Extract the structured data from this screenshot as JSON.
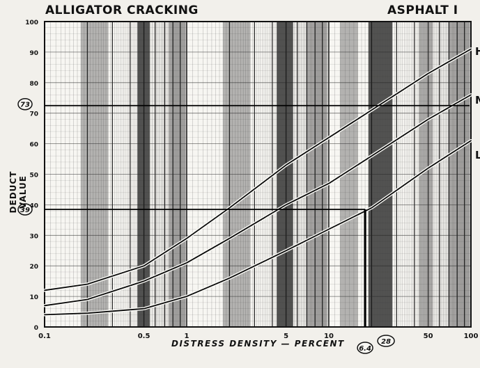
{
  "chart_data": {
    "type": "line",
    "title": "ALLIGATOR CRACKING",
    "subtitle": "ASPHALT I",
    "xlabel": "DISTRESS DENSITY — PERCENT",
    "ylabel": "DEDUCT VALUE",
    "x_scale": "log",
    "xlim": [
      0.1,
      100
    ],
    "ylim": [
      0,
      100
    ],
    "grid": true,
    "x_ticks": [
      0.1,
      0.5,
      1,
      5,
      10,
      50,
      100
    ],
    "x_tick_labels": [
      "0.1",
      "0.5",
      "1",
      "5",
      "10",
      "50",
      "100"
    ],
    "y_ticks": [
      0,
      10,
      20,
      30,
      40,
      50,
      60,
      70,
      80,
      90,
      100
    ],
    "y_tick_labels": [
      "0",
      "10",
      "20",
      "30",
      "40",
      "50",
      "60",
      "70",
      "80",
      "90",
      "100"
    ],
    "series": [
      {
        "name": "H",
        "x": [
          0.1,
          0.2,
          0.5,
          1,
          2,
          5,
          10,
          20,
          50,
          100
        ],
        "values": [
          12,
          14,
          20,
          29,
          39,
          53,
          62,
          71,
          83,
          91
        ]
      },
      {
        "name": "M",
        "x": [
          0.1,
          0.2,
          0.5,
          1,
          2,
          5,
          10,
          20,
          50,
          100
        ],
        "values": [
          7,
          9,
          15,
          21,
          29,
          40,
          47,
          56,
          68,
          76
        ]
      },
      {
        "name": "L",
        "x": [
          0.1,
          0.2,
          0.5,
          1,
          2,
          5,
          10,
          20,
          50,
          100
        ],
        "values": [
          4,
          4.5,
          6,
          10,
          16,
          25,
          32,
          39,
          52,
          61
        ]
      }
    ],
    "annotations": {
      "deduct_value_a": "73",
      "deduct_value_b": "39",
      "density_a": "6.4",
      "density_b": "28"
    },
    "guide_lines": {
      "high_value": 72.5,
      "low_value": 38.5,
      "low_density": 18
    },
    "legend_letters": [
      "H",
      "M",
      "L"
    ]
  }
}
